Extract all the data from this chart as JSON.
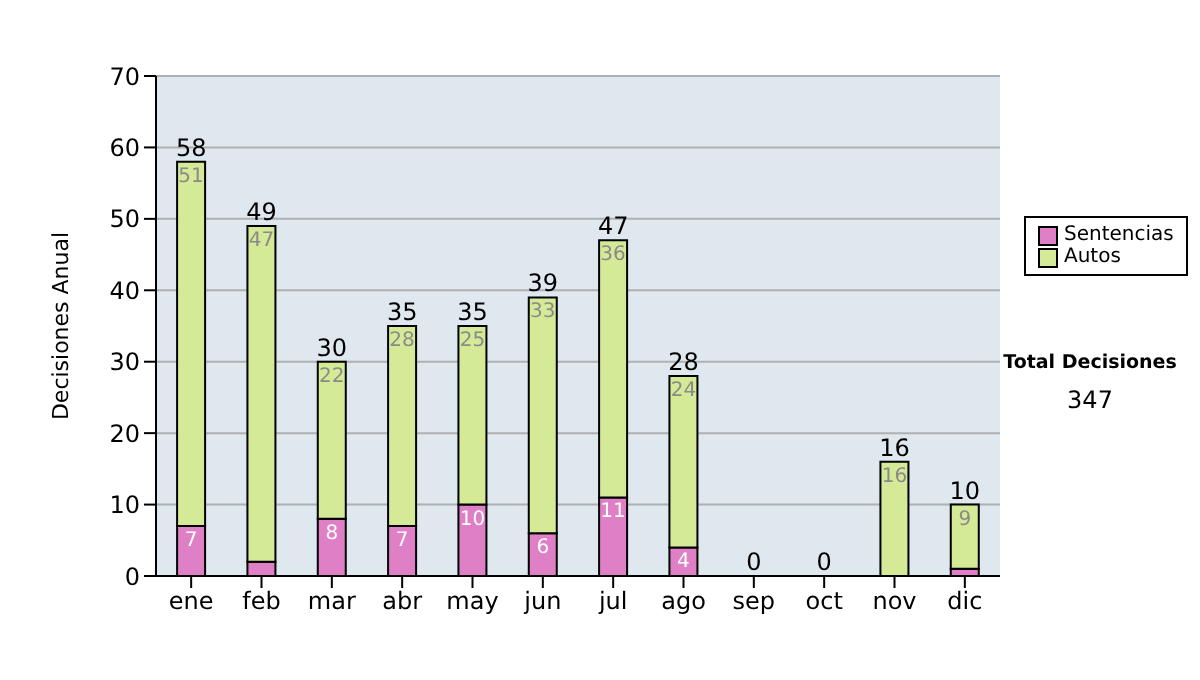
{
  "chart_data": {
    "type": "bar",
    "stacked": true,
    "ylabel": "Decisiones Anual",
    "categories": [
      "ene",
      "feb",
      "mar",
      "abr",
      "may",
      "jun",
      "jul",
      "ago",
      "sep",
      "oct",
      "nov",
      "dic"
    ],
    "series": [
      {
        "name": "Sentencias",
        "color": "#df7fc5",
        "values": [
          7,
          2,
          8,
          7,
          10,
          6,
          11,
          4,
          0,
          0,
          0,
          1
        ],
        "value_labels": [
          "7",
          null,
          "8",
          "7",
          "10",
          "6",
          "11",
          "4",
          null,
          null,
          null,
          null
        ]
      },
      {
        "name": "Autos",
        "color": "#d5ea96",
        "values": [
          51,
          47,
          22,
          28,
          25,
          33,
          36,
          24,
          0,
          0,
          16,
          9
        ],
        "value_labels": [
          "51",
          "47",
          "22",
          "28",
          "25",
          "33",
          "36",
          "24",
          null,
          null,
          "16",
          "9"
        ]
      }
    ],
    "totals": [
      "58",
      "49",
      "30",
      "35",
      "35",
      "39",
      "47",
      "28",
      "0",
      "0",
      "16",
      "10"
    ],
    "ylim": [
      0,
      70
    ],
    "yticks": [
      0,
      10,
      20,
      30,
      40,
      50,
      60,
      70
    ],
    "grid": "y",
    "legend": "right",
    "annotations": [
      "Total Decisiones",
      "347"
    ]
  }
}
